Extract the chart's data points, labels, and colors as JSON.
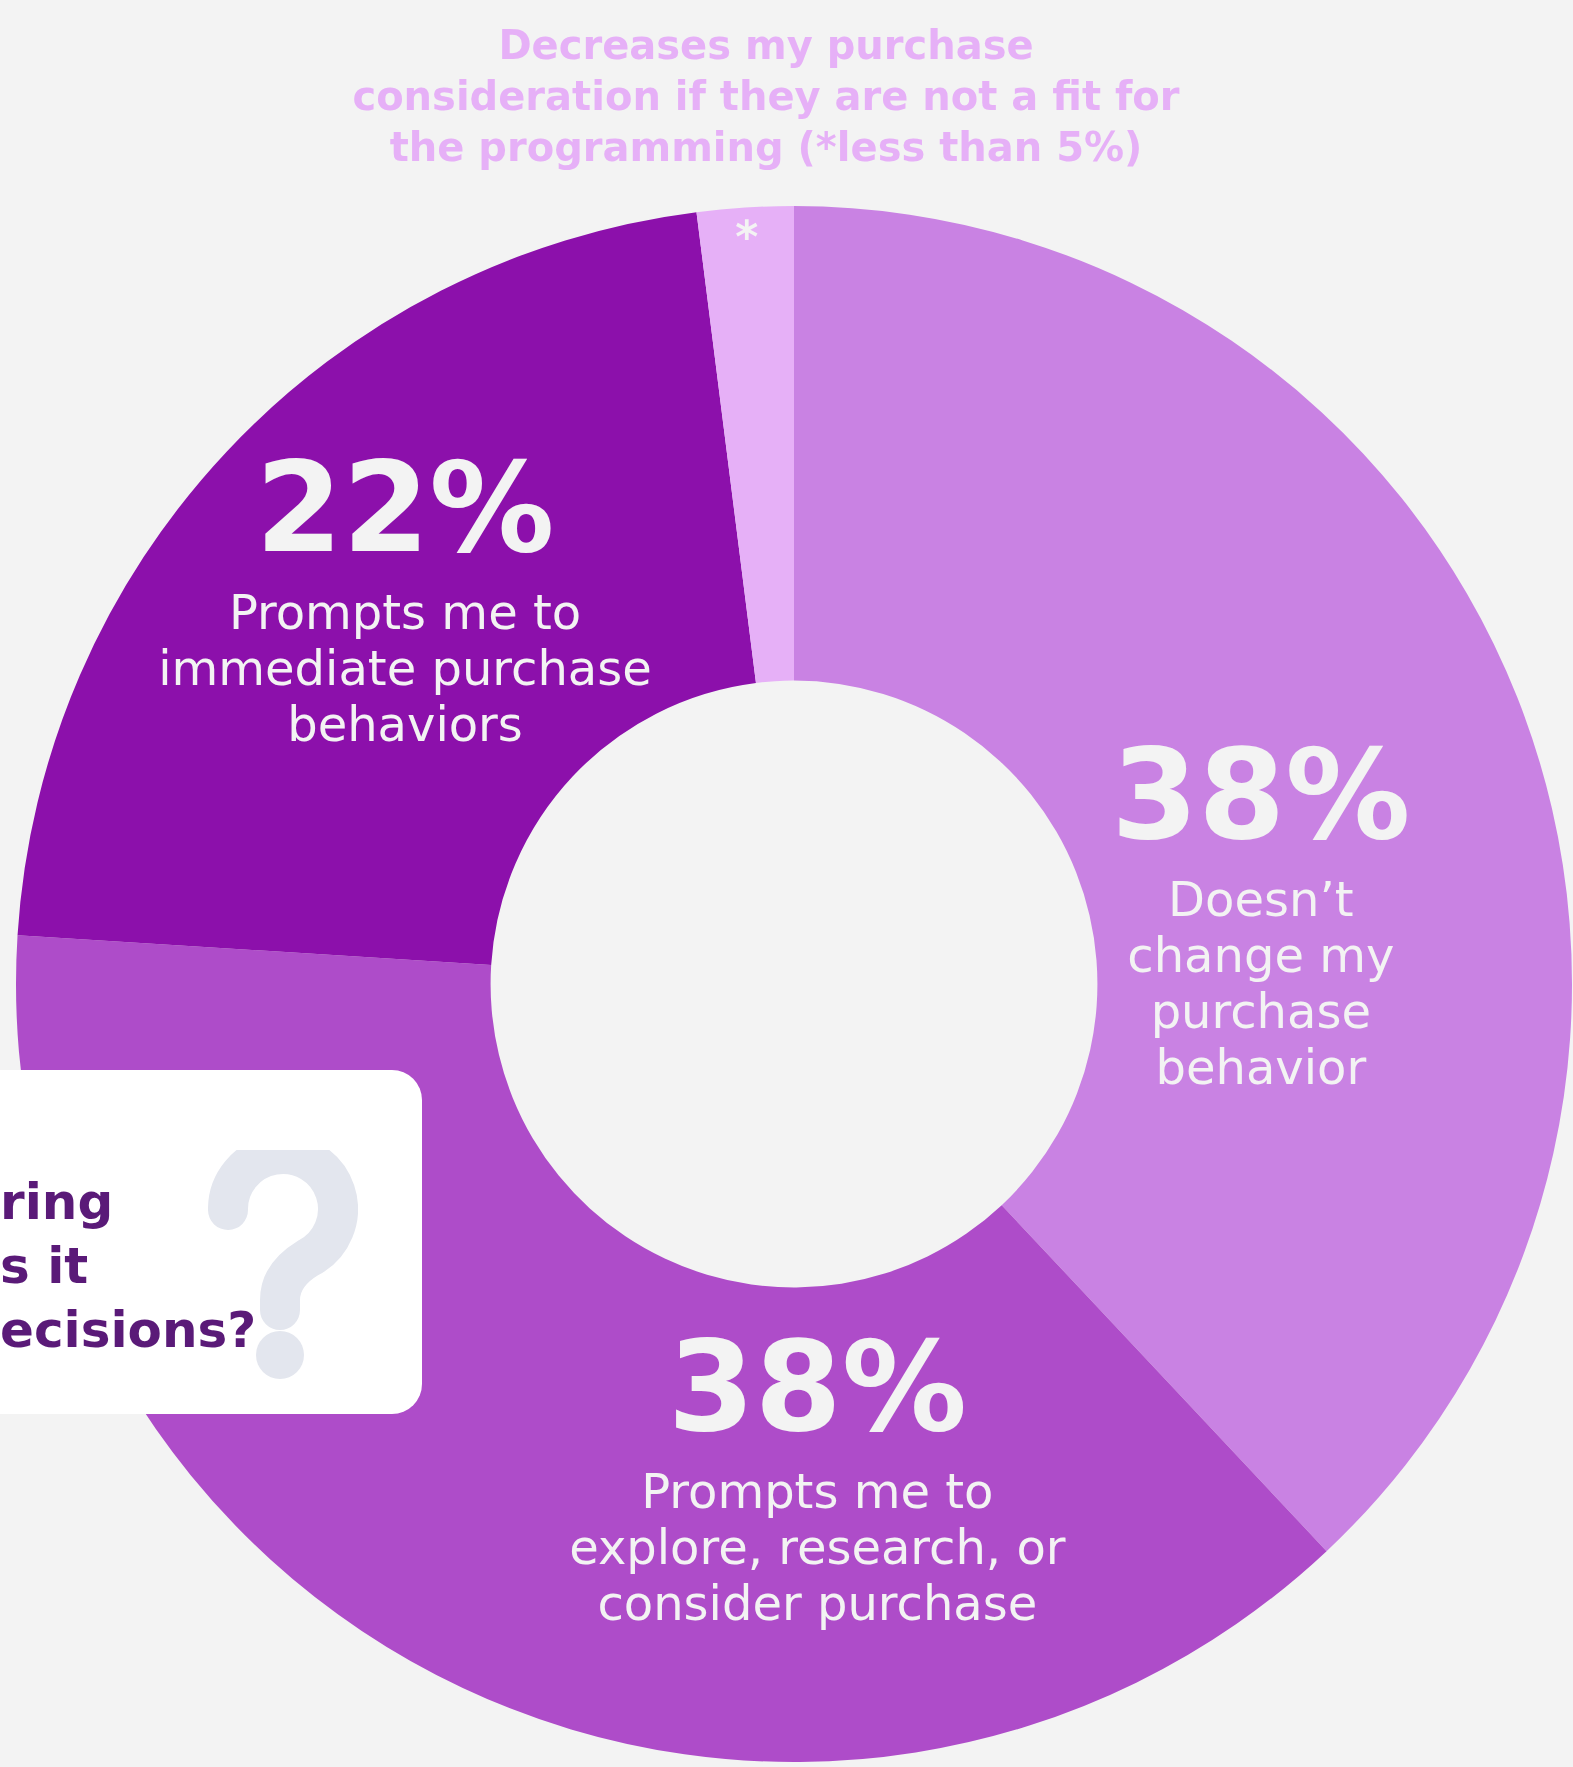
{
  "chart_data": {
    "type": "donut",
    "categories": [
      "Doesn’t change my purchase behavior",
      "Prompts me to explore, research, or consider purchase",
      "Prompts me to immediate purchase behaviors",
      "Decreases my purchase consideration if they are not a fit for the programming (*less than 5%)"
    ],
    "values": [
      38,
      38,
      22,
      2
    ],
    "colors": [
      "#c982e3",
      "#ae4cc9",
      "#8c10ab",
      "#e6b0f7"
    ],
    "value_labels": [
      "38%",
      "38%",
      "22%",
      "*"
    ],
    "annotations": [
      "ring\ns it\necisions?"
    ]
  }
}
